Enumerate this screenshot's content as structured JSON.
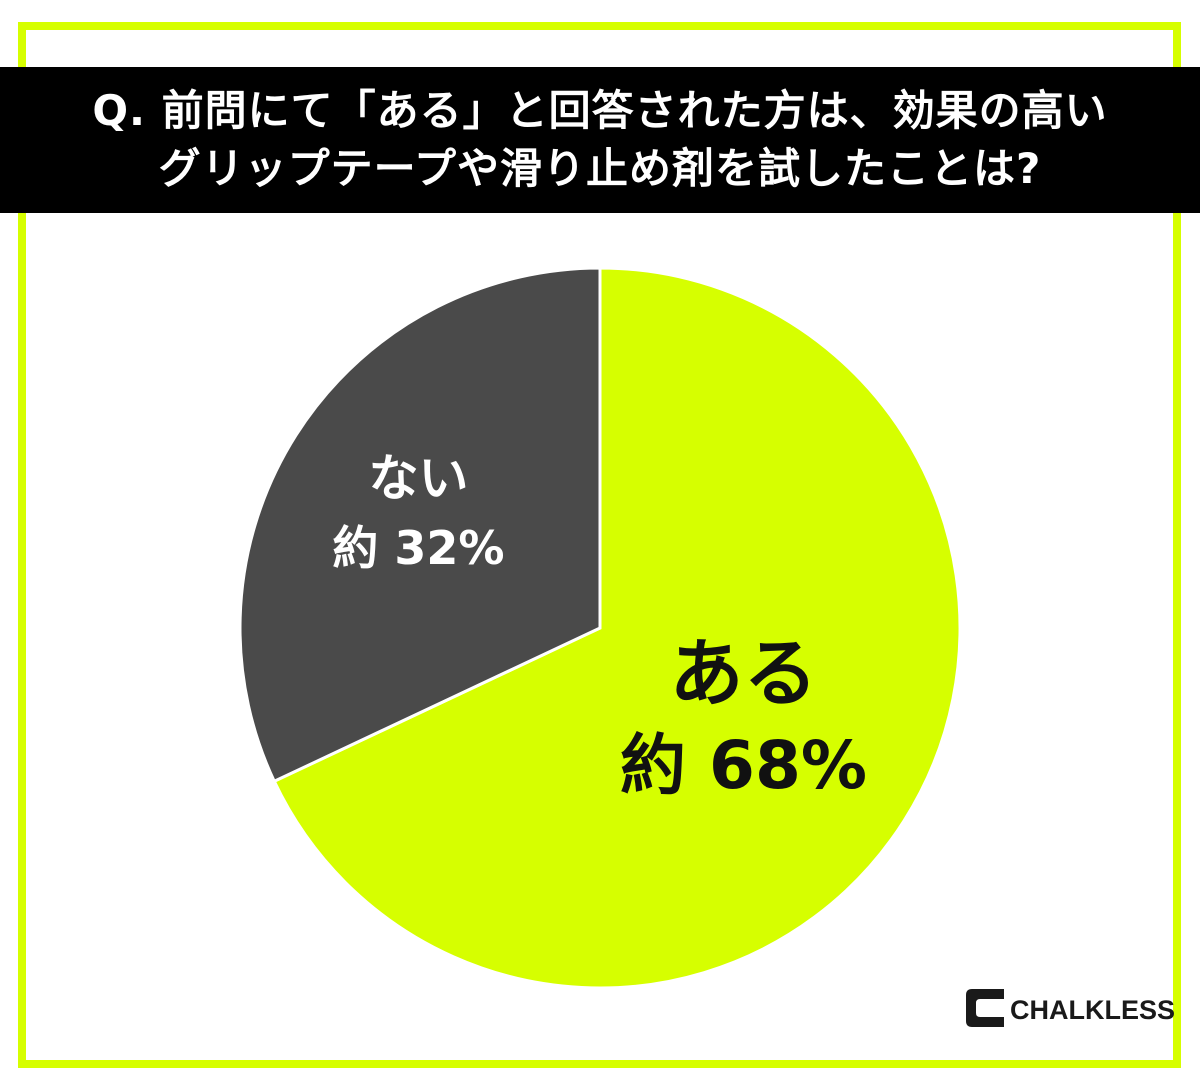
{
  "title": {
    "line1": "Q. 前問にて「ある」と回答された方は、効果の高い",
    "line2": "グリップテープや滑り止め剤を試したことは?"
  },
  "chart_data": {
    "type": "pie",
    "title": "Q. 前問にて「ある」と回答された方は、効果の高いグリップテープや滑り止め剤を試したことは?",
    "slices": [
      {
        "label": "ある",
        "value": 68,
        "value_label": "約 68%",
        "color": "#d6ff00",
        "text_color": "#111111"
      },
      {
        "label": "ない",
        "value": 32,
        "value_label": "約 32%",
        "color": "#4a4a4a",
        "text_color": "#ffffff"
      }
    ],
    "start": "12 o'clock",
    "direction": "clockwise",
    "legend": "none"
  },
  "logo": {
    "text": "CHALKLESS",
    "icon": "chalkless-c-logo-icon"
  },
  "colors": {
    "accent": "#d6ff00",
    "dark": "#4a4a4a",
    "title_bg": "#000000"
  }
}
